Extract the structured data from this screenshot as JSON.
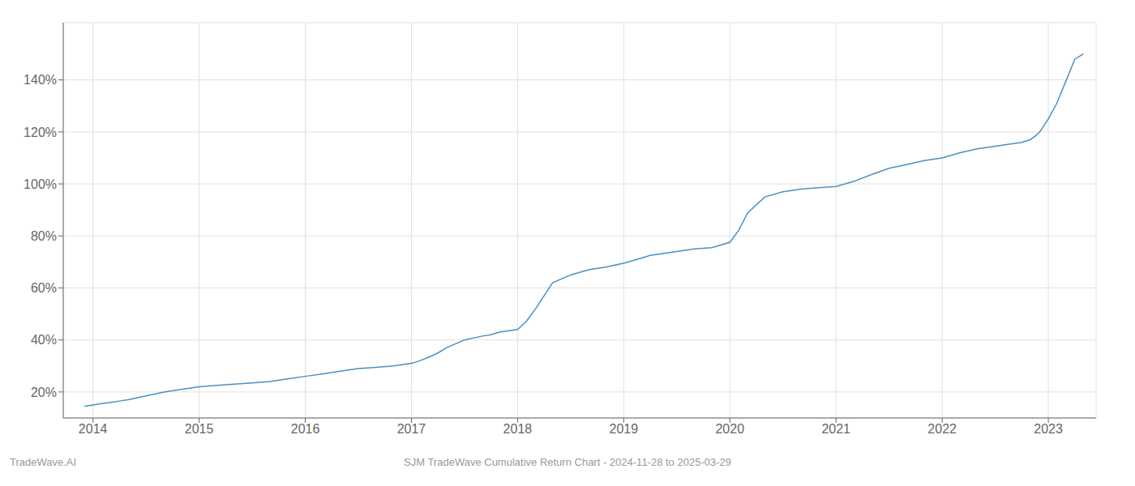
{
  "chart_data": {
    "type": "line",
    "title": "SJM TradeWave Cumulative Return Chart - 2024-11-28 to 2025-03-29",
    "annotations": [
      "TradeWave.AI"
    ],
    "color": "#4a90c4",
    "grid": true,
    "xlim": [
      2013.72,
      2023.45
    ],
    "xticks": [
      2014,
      2015,
      2016,
      2017,
      2018,
      2019,
      2020,
      2021,
      2022,
      2023
    ],
    "ylim": [
      10,
      162
    ],
    "yticks": [
      {
        "value": 20,
        "label": "20%"
      },
      {
        "value": 40,
        "label": "40%"
      },
      {
        "value": 60,
        "label": "60%"
      },
      {
        "value": 80,
        "label": "80%"
      },
      {
        "value": 100,
        "label": "100%"
      },
      {
        "value": 120,
        "label": "120%"
      },
      {
        "value": 140,
        "label": "140%"
      }
    ],
    "x": [
      2013.92,
      2014.0,
      2014.08,
      2014.17,
      2014.25,
      2014.33,
      2014.5,
      2014.67,
      2014.83,
      2015.0,
      2015.17,
      2015.33,
      2015.5,
      2015.67,
      2015.83,
      2016.0,
      2016.17,
      2016.33,
      2016.5,
      2016.67,
      2016.83,
      2017.0,
      2017.08,
      2017.17,
      2017.25,
      2017.33,
      2017.5,
      2017.67,
      2017.75,
      2017.83,
      2018.0,
      2018.08,
      2018.17,
      2018.25,
      2018.33,
      2018.5,
      2018.67,
      2018.83,
      2019.0,
      2019.17,
      2019.25,
      2019.33,
      2019.5,
      2019.67,
      2019.83,
      2020.0,
      2020.08,
      2020.17,
      2020.33,
      2020.5,
      2020.67,
      2020.83,
      2021.0,
      2021.17,
      2021.33,
      2021.5,
      2021.67,
      2021.83,
      2022.0,
      2022.17,
      2022.33,
      2022.5,
      2022.58,
      2022.67,
      2022.75,
      2022.83,
      2022.88,
      2022.92,
      2023.0,
      2023.08,
      2023.17,
      2023.25,
      2023.33
    ],
    "values": [
      14.5,
      15.0,
      15.5,
      16.0,
      16.5,
      17.0,
      18.5,
      20.0,
      21.0,
      22.0,
      22.5,
      23.0,
      23.5,
      24.0,
      25.0,
      26.0,
      27.0,
      28.0,
      29.0,
      29.5,
      30.0,
      31.0,
      32.0,
      33.5,
      35.0,
      37.0,
      40.0,
      41.5,
      42.0,
      43.0,
      44.0,
      47.0,
      52.0,
      57.0,
      62.0,
      65.0,
      67.0,
      68.0,
      69.5,
      71.5,
      72.5,
      73.0,
      74.0,
      75.0,
      75.5,
      77.5,
      82.0,
      89.0,
      95.0,
      97.0,
      98.0,
      98.5,
      99.0,
      101.0,
      103.5,
      106.0,
      107.5,
      109.0,
      110.0,
      112.0,
      113.5,
      114.5,
      115.0,
      115.5,
      116.0,
      117.0,
      118.5,
      120.0,
      125.0,
      131.0,
      140.0,
      148.0,
      150.0
    ]
  }
}
